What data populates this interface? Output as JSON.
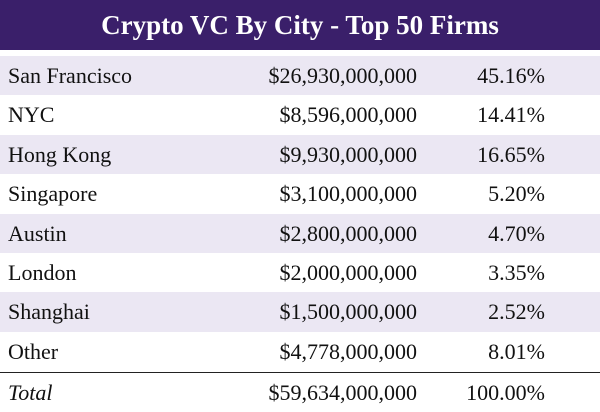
{
  "header": {
    "title": "Crypto VC By City - Top 50 Firms"
  },
  "table": {
    "rows": [
      [
        "San Francisco",
        "$26,930,000,000",
        "45.16%"
      ],
      [
        "NYC",
        "$8,596,000,000",
        "14.41%"
      ],
      [
        "Hong Kong",
        "$9,930,000,000",
        "16.65%"
      ],
      [
        "Singapore",
        "$3,100,000,000",
        "5.20%"
      ],
      [
        "Austin",
        "$2,800,000,000",
        "4.70%"
      ],
      [
        "London",
        "$2,000,000,000",
        "3.35%"
      ],
      [
        "Shanghai",
        "$1,500,000,000",
        "2.52%"
      ],
      [
        "Other",
        "$4,778,000,000",
        "8.01%"
      ]
    ],
    "total": [
      "Total",
      "$59,634,000,000",
      "100.00%"
    ]
  }
}
